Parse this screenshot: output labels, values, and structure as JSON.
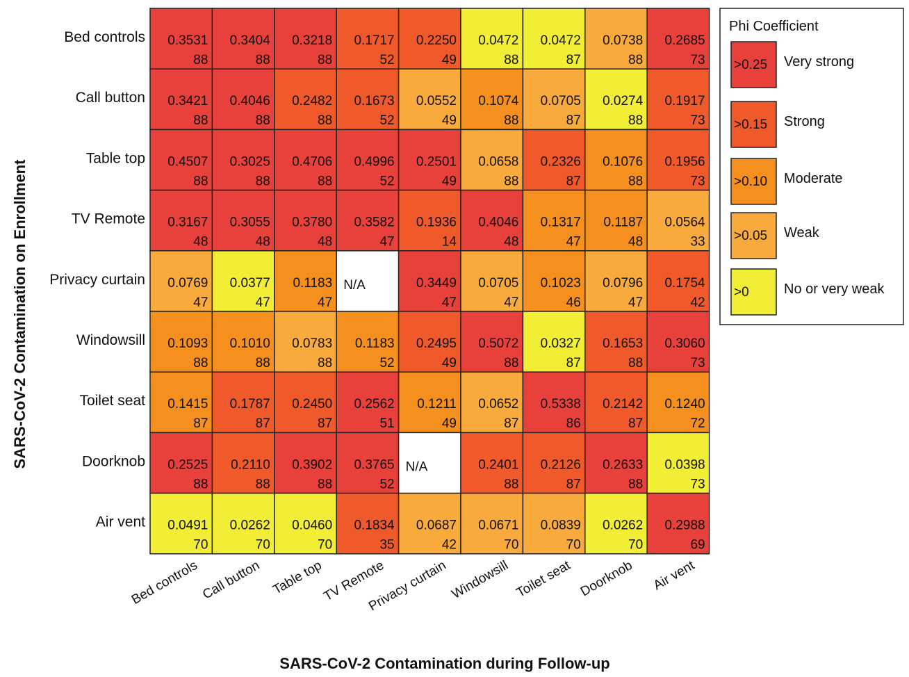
{
  "chart_data": {
    "type": "heatmap",
    "title": "",
    "xlabel": "SARS-CoV-2 Contamination during Follow-up",
    "ylabel": "SARS-CoV-2 Contamination on Enrollment",
    "columns": [
      "Bed controls",
      "Call button",
      "Table top",
      "TV Remote",
      "Privacy curtain",
      "Windowsill",
      "Toilet seat",
      "Doorknob",
      "Air vent"
    ],
    "rows": [
      "Bed controls",
      "Call button",
      "Table top",
      "TV Remote",
      "Privacy curtain",
      "Windowsill",
      "Toilet seat",
      "Doorknob",
      "Air vent"
    ],
    "na_label": "N/A",
    "phi": [
      [
        "0.3531",
        "0.3404",
        "0.3218",
        "0.1717",
        "0.2250",
        "0.0472",
        "0.0472",
        "0.0738",
        "0.2685"
      ],
      [
        "0.3421",
        "0.4046",
        "0.2482",
        "0.1673",
        "0.0552",
        "0.1074",
        "0.0705",
        "0.0274",
        "0.1917"
      ],
      [
        "0.4507",
        "0.3025",
        "0.4706",
        "0.4996",
        "0.2501",
        "0.0658",
        "0.2326",
        "0.1076",
        "0.1956"
      ],
      [
        "0.3167",
        "0.3055",
        "0.3780",
        "0.3582",
        "0.1936",
        "0.4046",
        "0.1317",
        "0.1187",
        "0.0564"
      ],
      [
        "0.0769",
        "0.0377",
        "0.1183",
        null,
        "0.3449",
        "0.0705",
        "0.1023",
        "0.0796",
        "0.1754"
      ],
      [
        "0.1093",
        "0.1010",
        "0.0783",
        "0.1183",
        "0.2495",
        "0.5072",
        "0.0327",
        "0.1653",
        "0.3060"
      ],
      [
        "0.1415",
        "0.1787",
        "0.2450",
        "0.2562",
        "0.1211",
        "0.0652",
        "0.5338",
        "0.2142",
        "0.1240"
      ],
      [
        "0.2525",
        "0.2110",
        "0.3902",
        "0.3765",
        null,
        "0.2401",
        "0.2126",
        "0.2633",
        "0.0398"
      ],
      [
        "0.0491",
        "0.0262",
        "0.0460",
        "0.1834",
        "0.0687",
        "0.0671",
        "0.0839",
        "0.0262",
        "0.2988"
      ]
    ],
    "n": [
      [
        "88",
        "88",
        "88",
        "52",
        "49",
        "88",
        "87",
        "88",
        "73"
      ],
      [
        "88",
        "88",
        "88",
        "52",
        "49",
        "88",
        "87",
        "88",
        "73"
      ],
      [
        "88",
        "88",
        "88",
        "52",
        "49",
        "88",
        "87",
        "88",
        "73"
      ],
      [
        "48",
        "48",
        "48",
        "47",
        "14",
        "48",
        "47",
        "48",
        "33"
      ],
      [
        "47",
        "47",
        "47",
        null,
        "47",
        "47",
        "46",
        "47",
        "42"
      ],
      [
        "88",
        "88",
        "88",
        "52",
        "49",
        "88",
        "87",
        "88",
        "73"
      ],
      [
        "87",
        "87",
        "87",
        "51",
        "49",
        "87",
        "86",
        "87",
        "72"
      ],
      [
        "88",
        "88",
        "88",
        "52",
        null,
        "88",
        "87",
        "88",
        "73"
      ],
      [
        "70",
        "70",
        "70",
        "35",
        "42",
        "70",
        "70",
        "70",
        "69"
      ]
    ],
    "legend": {
      "title": "Phi Coefficient",
      "placement": "right",
      "items": [
        {
          "threshold": 0.25,
          "box_label": ">0.25",
          "label": "Very strong",
          "color": "#e8413b"
        },
        {
          "threshold": 0.15,
          "box_label": ">0.15",
          "label": "Strong",
          "color": "#f05a2b"
        },
        {
          "threshold": 0.1,
          "box_label": ">0.10",
          "label": "Moderate",
          "color": "#f5901e"
        },
        {
          "threshold": 0.05,
          "box_label": ">0.05",
          "label": "Weak",
          "color": "#f9aa3c"
        },
        {
          "threshold": 0.0,
          "box_label": ">0",
          "label": "No or very weak",
          "color": "#f1ee35"
        }
      ]
    },
    "na_color": "#ffffff"
  }
}
